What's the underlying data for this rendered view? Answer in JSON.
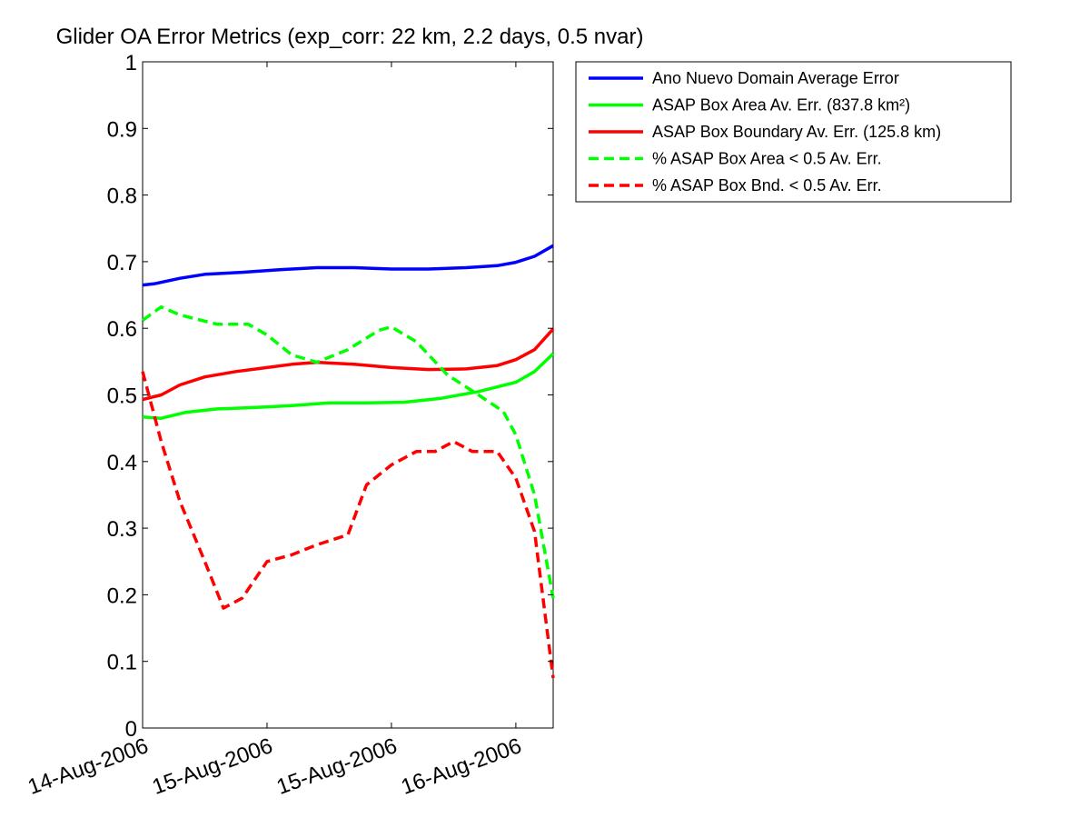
{
  "chart_data": {
    "type": "line",
    "title": "Glider OA Error Metrics (exp_corr: 22 km, 2.2 days, 0.5 nvar)",
    "xlabel": "",
    "ylabel": "",
    "ylim": [
      0,
      1
    ],
    "xlim": [
      0,
      3.3
    ],
    "grid": false,
    "legend_position": "outside-right-top",
    "yticks": [
      "0",
      "0.1",
      "0.2",
      "0.3",
      "0.4",
      "0.5",
      "0.6",
      "0.7",
      "0.8",
      "0.9",
      "1"
    ],
    "xticks": [
      {
        "x": 0,
        "label": "14-Aug-2006"
      },
      {
        "x": 1,
        "label": "15-Aug-2006"
      },
      {
        "x": 2,
        "label": "15-Aug-2006"
      },
      {
        "x": 3,
        "label": "16-Aug-2006"
      }
    ],
    "series": [
      {
        "name": "Ano Nuevo Domain Average Error",
        "color": "#0000ff",
        "style": "solid",
        "x": [
          0,
          0.1,
          0.3,
          0.5,
          0.8,
          1.1,
          1.4,
          1.7,
          2.0,
          2.3,
          2.6,
          2.85,
          3.0,
          3.15,
          3.3
        ],
        "y": [
          0.665,
          0.667,
          0.675,
          0.681,
          0.684,
          0.688,
          0.691,
          0.691,
          0.689,
          0.689,
          0.691,
          0.694,
          0.699,
          0.708,
          0.724
        ]
      },
      {
        "name": "ASAP Box Area Av. Err. (837.8 km²)",
        "color": "#00ff00",
        "style": "solid",
        "x": [
          0,
          0.15,
          0.35,
          0.6,
          0.9,
          1.2,
          1.5,
          1.8,
          2.1,
          2.4,
          2.7,
          3.0,
          3.15,
          3.3
        ],
        "y": [
          0.467,
          0.465,
          0.474,
          0.479,
          0.481,
          0.484,
          0.488,
          0.488,
          0.489,
          0.495,
          0.505,
          0.519,
          0.535,
          0.562
        ]
      },
      {
        "name": "ASAP Box Boundary Av. Err. (125.8 km)",
        "color": "#ff0000",
        "style": "solid",
        "x": [
          0,
          0.15,
          0.3,
          0.5,
          0.75,
          1.0,
          1.2,
          1.4,
          1.7,
          2.0,
          2.3,
          2.6,
          2.85,
          3.0,
          3.15,
          3.3
        ],
        "y": [
          0.493,
          0.5,
          0.515,
          0.527,
          0.535,
          0.541,
          0.546,
          0.549,
          0.546,
          0.541,
          0.538,
          0.539,
          0.544,
          0.553,
          0.568,
          0.599
        ]
      },
      {
        "name": "% ASAP Box Area < 0.5 Av. Err.",
        "color": "#00ff00",
        "style": "dashed",
        "x": [
          0,
          0.15,
          0.3,
          0.6,
          0.85,
          1.0,
          1.2,
          1.4,
          1.65,
          1.9,
          2.0,
          2.2,
          2.45,
          2.7,
          2.9,
          3.0,
          3.15,
          3.3
        ],
        "y": [
          0.612,
          0.632,
          0.62,
          0.606,
          0.606,
          0.59,
          0.56,
          0.549,
          0.568,
          0.597,
          0.602,
          0.58,
          0.53,
          0.5,
          0.475,
          0.44,
          0.35,
          0.195
        ]
      },
      {
        "name": "% ASAP Box Bnd. < 0.5 Av. Err.",
        "color": "#ff0000",
        "style": "dashed",
        "x": [
          0,
          0.15,
          0.3,
          0.5,
          0.65,
          0.8,
          1.0,
          1.2,
          1.4,
          1.65,
          1.8,
          2.0,
          2.2,
          2.35,
          2.5,
          2.65,
          2.85,
          3.0,
          3.15,
          3.3
        ],
        "y": [
          0.535,
          0.43,
          0.34,
          0.25,
          0.18,
          0.195,
          0.25,
          0.26,
          0.275,
          0.29,
          0.365,
          0.395,
          0.415,
          0.415,
          0.43,
          0.415,
          0.415,
          0.375,
          0.295,
          0.075
        ]
      }
    ]
  }
}
